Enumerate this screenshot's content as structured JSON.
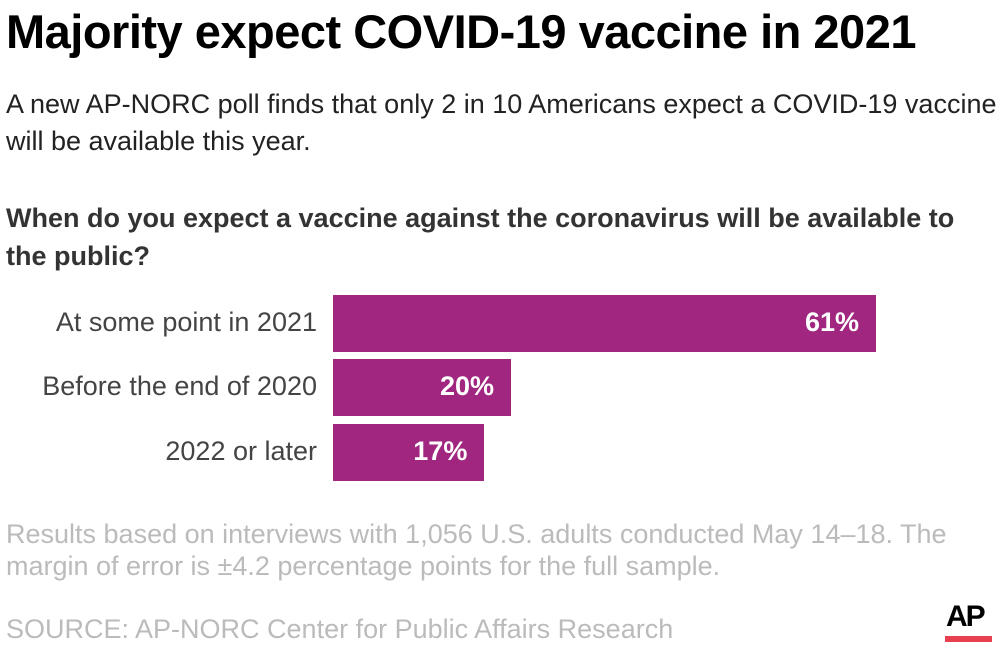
{
  "header": {
    "title": "Majority expect COVID-19 vaccine in 2021",
    "subtitle": "A new AP-NORC poll finds that only 2 in 10 Americans expect a COVID-19 vaccine will be available this year."
  },
  "chart_data": {
    "type": "bar",
    "orientation": "horizontal",
    "title": "When do you expect a vaccine against the coronavirus will be available to the public?",
    "categories": [
      "At some point in 2021",
      "Before the end of 2020",
      "2022 or later"
    ],
    "values": [
      61,
      20,
      17
    ],
    "data_labels": [
      "61%",
      "20%",
      "17%"
    ],
    "unit": "%",
    "xlim": [
      0,
      100
    ],
    "grid": false,
    "bar_color": "#a0267f"
  },
  "footer": {
    "note": "Results based on interviews with 1,056 U.S. adults conducted May 14–18. The margin of error is ±4.2 percentage points for the full sample.",
    "source": "SOURCE: AP-NORC Center for Public Affairs Research",
    "logo": "AP"
  },
  "colors": {
    "accent": "#a0267f",
    "logo_bar": "#e8404f"
  }
}
